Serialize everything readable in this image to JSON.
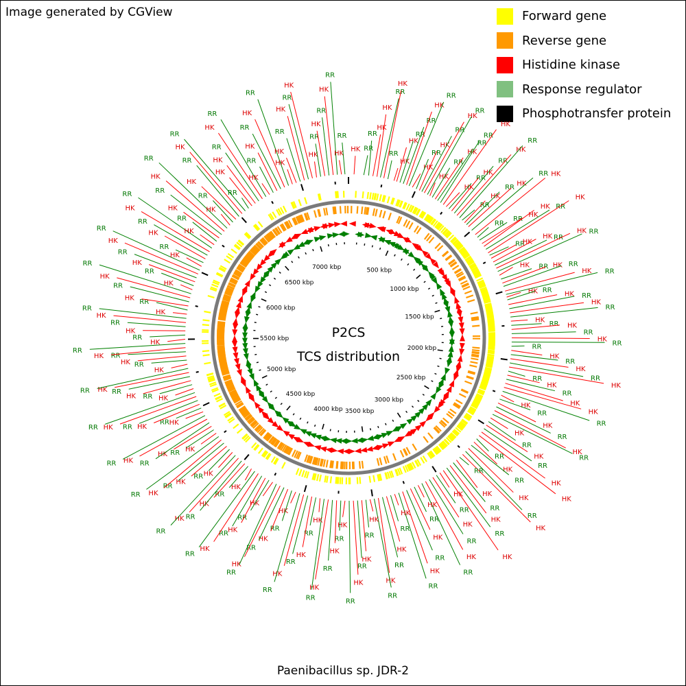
{
  "header_note": "Image generated by CGView",
  "footer_title": "Paenibacillus sp. JDR-2",
  "center": {
    "title": "P2CS",
    "subtitle": "TCS distribution"
  },
  "legend": [
    {
      "label": "Forward gene",
      "color": "#ffff00"
    },
    {
      "label": "Reverse gene",
      "color": "#ff9900"
    },
    {
      "label": "Histidine kinase",
      "color": "#ff0000"
    },
    {
      "label": "Response regulator",
      "color": "#80c080"
    },
    {
      "label": "Phosphotransfer protein",
      "color": "#000000"
    }
  ],
  "colors": {
    "forward": "#ffff00",
    "reverse": "#ff9900",
    "hk_label": "#dd0000",
    "rr_label": "#007700",
    "hk_feature": "#ff0000",
    "rr_feature": "#008000",
    "backbone": "#808080"
  },
  "genome": {
    "length_kbp": 7350,
    "tick_labels": [
      {
        "kbp": 500,
        "label": "500 kbp"
      },
      {
        "kbp": 1000,
        "label": "1000 kbp"
      },
      {
        "kbp": 1500,
        "label": "1500 kbp"
      },
      {
        "kbp": 2000,
        "label": "2000 kbp"
      },
      {
        "kbp": 2500,
        "label": "2500 kbp"
      },
      {
        "kbp": 3000,
        "label": "3000 kbp"
      },
      {
        "kbp": 3500,
        "label": "3500 kbp"
      },
      {
        "kbp": 4000,
        "label": "4000 kbp"
      },
      {
        "kbp": 4500,
        "label": "4500 kbp"
      },
      {
        "kbp": 5000,
        "label": "5000 kbp"
      },
      {
        "kbp": 5500,
        "label": "5500 kbp"
      },
      {
        "kbp": 6000,
        "label": "6000 kbp"
      },
      {
        "kbp": 6500,
        "label": "6500 kbp"
      },
      {
        "kbp": 7000,
        "label": "7000 kbp"
      }
    ]
  },
  "features": [
    {
      "label": "HK",
      "kbp": 40
    },
    {
      "label": "RR",
      "kbp": 110
    },
    {
      "label": "RR",
      "kbp": 145
    },
    {
      "label": "HK",
      "kbp": 175
    },
    {
      "label": "HK",
      "kbp": 205
    },
    {
      "label": "RR",
      "kbp": 230
    },
    {
      "label": "HK",
      "kbp": 255
    },
    {
      "label": "RR",
      "kbp": 285
    },
    {
      "label": "HK",
      "kbp": 330
    },
    {
      "label": "HK",
      "kbp": 350
    },
    {
      "label": "RR",
      "kbp": 375
    },
    {
      "label": "RR",
      "kbp": 400
    },
    {
      "label": "HK",
      "kbp": 425
    },
    {
      "label": "RR",
      "kbp": 445
    },
    {
      "label": "HK",
      "kbp": 470
    },
    {
      "label": "RR",
      "kbp": 500
    },
    {
      "label": "HK",
      "kbp": 525
    },
    {
      "label": "RR",
      "kbp": 545
    },
    {
      "label": "HK",
      "kbp": 565
    },
    {
      "label": "RR",
      "kbp": 590
    },
    {
      "label": "HK",
      "kbp": 610
    },
    {
      "label": "RR",
      "kbp": 630
    },
    {
      "label": "HK",
      "kbp": 655
    },
    {
      "label": "RR",
      "kbp": 675
    },
    {
      "label": "RR",
      "kbp": 700
    },
    {
      "label": "HK",
      "kbp": 725
    },
    {
      "label": "HK",
      "kbp": 750
    },
    {
      "label": "RR",
      "kbp": 775
    },
    {
      "label": "HK",
      "kbp": 800
    },
    {
      "label": "RR",
      "kbp": 825
    },
    {
      "label": "HK",
      "kbp": 850
    },
    {
      "label": "RR",
      "kbp": 875
    },
    {
      "label": "RR",
      "kbp": 900
    },
    {
      "label": "HK",
      "kbp": 925
    },
    {
      "label": "RR",
      "kbp": 945
    },
    {
      "label": "HK",
      "kbp": 965
    },
    {
      "label": "RR",
      "kbp": 1000
    },
    {
      "label": "HK",
      "kbp": 1040
    },
    {
      "label": "RR",
      "kbp": 1065
    },
    {
      "label": "RR",
      "kbp": 1090
    },
    {
      "label": "HK",
      "kbp": 1120
    },
    {
      "label": "HK",
      "kbp": 1145
    },
    {
      "label": "RR",
      "kbp": 1170
    },
    {
      "label": "HK",
      "kbp": 1200
    },
    {
      "label": "RR",
      "kbp": 1220
    },
    {
      "label": "HK",
      "kbp": 1245
    },
    {
      "label": "HK",
      "kbp": 1275
    },
    {
      "label": "RR",
      "kbp": 1300
    },
    {
      "label": "HK",
      "kbp": 1325
    },
    {
      "label": "RR",
      "kbp": 1350
    },
    {
      "label": "HK",
      "kbp": 1380
    },
    {
      "label": "RR",
      "kbp": 1410
    },
    {
      "label": "HK",
      "kbp": 1440
    },
    {
      "label": "RR",
      "kbp": 1465
    },
    {
      "label": "HK",
      "kbp": 1500
    },
    {
      "label": "RR",
      "kbp": 1525
    },
    {
      "label": "HK",
      "kbp": 1545
    },
    {
      "label": "RR",
      "kbp": 1565
    },
    {
      "label": "HK",
      "kbp": 1600
    },
    {
      "label": "RR",
      "kbp": 1630
    },
    {
      "label": "HK",
      "kbp": 1660
    },
    {
      "label": "RR",
      "kbp": 1690
    },
    {
      "label": "HK",
      "kbp": 1720
    },
    {
      "label": "RR",
      "kbp": 1750
    },
    {
      "label": "HK",
      "kbp": 1780
    },
    {
      "label": "RR",
      "kbp": 1810
    },
    {
      "label": "HK",
      "kbp": 1840
    },
    {
      "label": "RR",
      "kbp": 1870
    },
    {
      "label": "RR",
      "kbp": 1900
    },
    {
      "label": "HK",
      "kbp": 1930
    },
    {
      "label": "RR",
      "kbp": 1960
    },
    {
      "label": "HK",
      "kbp": 1990
    },
    {
      "label": "RR",
      "kbp": 2020
    },
    {
      "label": "HK",
      "kbp": 2050
    },
    {
      "label": "RR",
      "kbp": 2080
    },
    {
      "label": "HK",
      "kbp": 2110
    },
    {
      "label": "RR",
      "kbp": 2140
    },
    {
      "label": "HK",
      "kbp": 2170
    },
    {
      "label": "HK",
      "kbp": 2200
    },
    {
      "label": "RR",
      "kbp": 2230
    },
    {
      "label": "HK",
      "kbp": 2260
    },
    {
      "label": "RR",
      "kbp": 2290
    },
    {
      "label": "HK",
      "kbp": 2320
    },
    {
      "label": "RR",
      "kbp": 2350
    },
    {
      "label": "HK",
      "kbp": 2380
    },
    {
      "label": "RR",
      "kbp": 2410
    },
    {
      "label": "HK",
      "kbp": 2440
    },
    {
      "label": "RR",
      "kbp": 2470
    },
    {
      "label": "HK",
      "kbp": 2500
    },
    {
      "label": "RR",
      "kbp": 2530
    },
    {
      "label": "HK",
      "kbp": 2560
    },
    {
      "label": "HK",
      "kbp": 2590
    },
    {
      "label": "RR",
      "kbp": 2620
    },
    {
      "label": "HK",
      "kbp": 2650
    },
    {
      "label": "RR",
      "kbp": 2680
    },
    {
      "label": "HK",
      "kbp": 2710
    },
    {
      "label": "RR",
      "kbp": 2740
    },
    {
      "label": "HK",
      "kbp": 2770
    },
    {
      "label": "RR",
      "kbp": 2800
    },
    {
      "label": "HK",
      "kbp": 2830
    },
    {
      "label": "RR",
      "kbp": 2860
    },
    {
      "label": "HK",
      "kbp": 2890
    },
    {
      "label": "RR",
      "kbp": 2920
    },
    {
      "label": "HK",
      "kbp": 2950
    },
    {
      "label": "HK",
      "kbp": 2980
    },
    {
      "label": "RR",
      "kbp": 3010
    },
    {
      "label": "HK",
      "kbp": 3040
    },
    {
      "label": "RR",
      "kbp": 3070
    },
    {
      "label": "HK",
      "kbp": 3100
    },
    {
      "label": "RR",
      "kbp": 3130
    },
    {
      "label": "HK",
      "kbp": 3160
    },
    {
      "label": "RR",
      "kbp": 3190
    },
    {
      "label": "HK",
      "kbp": 3220
    },
    {
      "label": "RR",
      "kbp": 3250
    },
    {
      "label": "HK",
      "kbp": 3280
    },
    {
      "label": "RR",
      "kbp": 3310
    },
    {
      "label": "HK",
      "kbp": 3340
    },
    {
      "label": "RR",
      "kbp": 3370
    },
    {
      "label": "HK",
      "kbp": 3400
    },
    {
      "label": "RR",
      "kbp": 3430
    },
    {
      "label": "HK",
      "kbp": 3460
    },
    {
      "label": "RR",
      "kbp": 3490
    },
    {
      "label": "HK",
      "kbp": 3520
    },
    {
      "label": "RR",
      "kbp": 3550
    },
    {
      "label": "HK",
      "kbp": 3580
    },
    {
      "label": "RR",
      "kbp": 3610
    },
    {
      "label": "HK",
      "kbp": 3640
    },
    {
      "label": "RR",
      "kbp": 3670
    },
    {
      "label": "HK",
      "kbp": 3700
    },
    {
      "label": "RR",
      "kbp": 3730
    },
    {
      "label": "HK",
      "kbp": 3760
    },
    {
      "label": "RR",
      "kbp": 3790
    },
    {
      "label": "HK",
      "kbp": 3820
    },
    {
      "label": "RR",
      "kbp": 3850
    },
    {
      "label": "HK",
      "kbp": 3880
    },
    {
      "label": "RR",
      "kbp": 3910
    },
    {
      "label": "HK",
      "kbp": 3940
    },
    {
      "label": "RR",
      "kbp": 3970
    },
    {
      "label": "HK",
      "kbp": 4000
    },
    {
      "label": "RR",
      "kbp": 4030
    },
    {
      "label": "HK",
      "kbp": 4060
    },
    {
      "label": "RR",
      "kbp": 4090
    },
    {
      "label": "HK",
      "kbp": 4120
    },
    {
      "label": "RR",
      "kbp": 4150
    },
    {
      "label": "HK",
      "kbp": 4180
    },
    {
      "label": "RR",
      "kbp": 4210
    },
    {
      "label": "HK",
      "kbp": 4240
    },
    {
      "label": "RR",
      "kbp": 4270
    },
    {
      "label": "HK",
      "kbp": 4300
    },
    {
      "label": "RR",
      "kbp": 4330
    },
    {
      "label": "HK",
      "kbp": 4360
    },
    {
      "label": "RR",
      "kbp": 4390
    },
    {
      "label": "HK",
      "kbp": 4420
    },
    {
      "label": "RR",
      "kbp": 4450
    },
    {
      "label": "HK",
      "kbp": 4480
    },
    {
      "label": "RR",
      "kbp": 4510
    },
    {
      "label": "HK",
      "kbp": 4540
    },
    {
      "label": "RR",
      "kbp": 4570
    },
    {
      "label": "HK",
      "kbp": 4600
    },
    {
      "label": "RR",
      "kbp": 4630
    },
    {
      "label": "HK",
      "kbp": 4660
    },
    {
      "label": "RR",
      "kbp": 4690
    },
    {
      "label": "HK",
      "kbp": 4720
    },
    {
      "label": "RR",
      "kbp": 4750
    },
    {
      "label": "HK",
      "kbp": 4780
    },
    {
      "label": "RR",
      "kbp": 4810
    },
    {
      "label": "HK",
      "kbp": 4840
    },
    {
      "label": "RR",
      "kbp": 4870
    },
    {
      "label": "HK",
      "kbp": 4900
    },
    {
      "label": "RR",
      "kbp": 4930
    },
    {
      "label": "HK",
      "kbp": 4960
    },
    {
      "label": "RR",
      "kbp": 4990
    },
    {
      "label": "HK",
      "kbp": 5020
    },
    {
      "label": "RR",
      "kbp": 5050
    },
    {
      "label": "HK",
      "kbp": 5080
    },
    {
      "label": "RR",
      "kbp": 5110
    },
    {
      "label": "HK",
      "kbp": 5140
    },
    {
      "label": "RR",
      "kbp": 5170
    },
    {
      "label": "HK",
      "kbp": 5200
    },
    {
      "label": "RR",
      "kbp": 5230
    },
    {
      "label": "HK",
      "kbp": 5260
    },
    {
      "label": "RR",
      "kbp": 5290
    },
    {
      "label": "HK",
      "kbp": 5320
    },
    {
      "label": "RR",
      "kbp": 5350
    },
    {
      "label": "HK",
      "kbp": 5380
    },
    {
      "label": "RR",
      "kbp": 5410
    },
    {
      "label": "HK",
      "kbp": 5440
    },
    {
      "label": "RR",
      "kbp": 5470
    },
    {
      "label": "HK",
      "kbp": 5500
    },
    {
      "label": "RR",
      "kbp": 5530
    },
    {
      "label": "HK",
      "kbp": 5560
    },
    {
      "label": "RR",
      "kbp": 5590
    },
    {
      "label": "HK",
      "kbp": 5620
    },
    {
      "label": "RR",
      "kbp": 5650
    },
    {
      "label": "HK",
      "kbp": 5680
    },
    {
      "label": "RR",
      "kbp": 5710
    },
    {
      "label": "HK",
      "kbp": 5740
    },
    {
      "label": "RR",
      "kbp": 5770
    },
    {
      "label": "HK",
      "kbp": 5800
    },
    {
      "label": "RR",
      "kbp": 5830
    },
    {
      "label": "HK",
      "kbp": 5860
    },
    {
      "label": "RR",
      "kbp": 5890
    },
    {
      "label": "HK",
      "kbp": 5920
    },
    {
      "label": "RR",
      "kbp": 5950
    },
    {
      "label": "HK",
      "kbp": 5980
    },
    {
      "label": "RR",
      "kbp": 6010
    },
    {
      "label": "HK",
      "kbp": 6040
    },
    {
      "label": "RR",
      "kbp": 6070
    },
    {
      "label": "HK",
      "kbp": 6100
    },
    {
      "label": "RR",
      "kbp": 6130
    },
    {
      "label": "HK",
      "kbp": 6160
    },
    {
      "label": "RR",
      "kbp": 6190
    },
    {
      "label": "HK",
      "kbp": 6220
    },
    {
      "label": "RR",
      "kbp": 6250
    },
    {
      "label": "HK",
      "kbp": 6280
    },
    {
      "label": "RR",
      "kbp": 6310
    },
    {
      "label": "HK",
      "kbp": 6340
    },
    {
      "label": "RR",
      "kbp": 6370
    },
    {
      "label": "HK",
      "kbp": 6400
    },
    {
      "label": "RR",
      "kbp": 6430
    },
    {
      "label": "HK",
      "kbp": 6460
    },
    {
      "label": "RR",
      "kbp": 6490
    },
    {
      "label": "HK",
      "kbp": 6520
    },
    {
      "label": "RR",
      "kbp": 6550
    },
    {
      "label": "RR",
      "kbp": 6580
    },
    {
      "label": "HK",
      "kbp": 6610
    },
    {
      "label": "HK",
      "kbp": 6640
    },
    {
      "label": "RR",
      "kbp": 6670
    },
    {
      "label": "HK",
      "kbp": 6700
    },
    {
      "label": "RR",
      "kbp": 6730
    },
    {
      "label": "HK",
      "kbp": 6760
    },
    {
      "label": "RR",
      "kbp": 6790
    },
    {
      "label": "HK",
      "kbp": 6820
    },
    {
      "label": "RR",
      "kbp": 6850
    },
    {
      "label": "HK",
      "kbp": 6880
    },
    {
      "label": "RR",
      "kbp": 6910
    },
    {
      "label": "HK",
      "kbp": 6940
    },
    {
      "label": "HK",
      "kbp": 6970
    },
    {
      "label": "RR",
      "kbp": 7000
    },
    {
      "label": "HK",
      "kbp": 7030
    },
    {
      "label": "RR",
      "kbp": 7060
    },
    {
      "label": "HK",
      "kbp": 7090
    },
    {
      "label": "HK",
      "kbp": 7120
    },
    {
      "label": "RR",
      "kbp": 7150
    },
    {
      "label": "HK",
      "kbp": 7180
    },
    {
      "label": "RR",
      "kbp": 7210
    },
    {
      "label": "HK",
      "kbp": 7240
    },
    {
      "label": "RR",
      "kbp": 7270
    },
    {
      "label": "HK",
      "kbp": 7300
    },
    {
      "label": "RR",
      "kbp": 7325
    }
  ]
}
